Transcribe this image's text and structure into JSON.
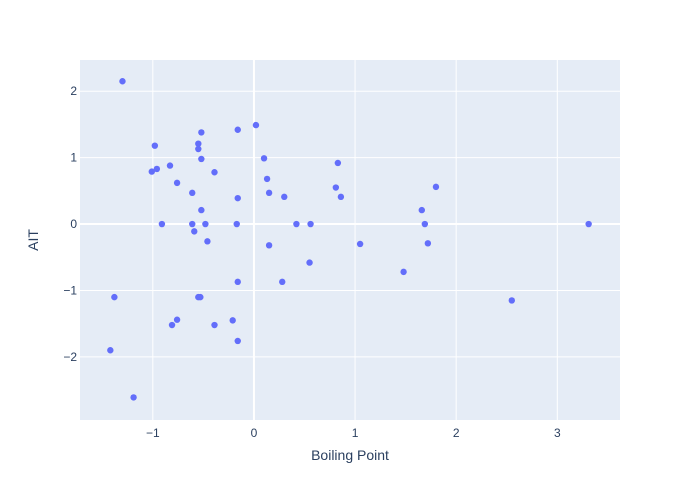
{
  "chart_data": {
    "type": "scatter",
    "title": "",
    "xlabel": "Boiling Point",
    "ylabel": "AIT",
    "xlim": [
      -1.72,
      3.62
    ],
    "ylim": [
      -2.95,
      2.47
    ],
    "xticks": [
      -1,
      0,
      1,
      2,
      3
    ],
    "xtick_labels": [
      "−1",
      "0",
      "1",
      "2",
      "3"
    ],
    "yticks": [
      -2,
      -1,
      0,
      1,
      2
    ],
    "ytick_labels": [
      "−2",
      "−1",
      "0",
      "1",
      "2"
    ],
    "grid": true,
    "legend": false,
    "plot_background": "#E5ECF6",
    "grid_color": "#FFFFFF",
    "marker_color": "#636EFA",
    "text_color": "#2A3F5F",
    "points": [
      {
        "x": -1.3,
        "y": 2.15
      },
      {
        "x": 0.02,
        "y": 1.49
      },
      {
        "x": -0.16,
        "y": 1.42
      },
      {
        "x": -0.52,
        "y": 1.38
      },
      {
        "x": -0.55,
        "y": 1.21
      },
      {
        "x": -0.98,
        "y": 1.18
      },
      {
        "x": -0.55,
        "y": 1.13
      },
      {
        "x": -0.52,
        "y": 0.98
      },
      {
        "x": 0.1,
        "y": 0.99
      },
      {
        "x": 0.83,
        "y": 0.92
      },
      {
        "x": -0.83,
        "y": 0.88
      },
      {
        "x": -0.96,
        "y": 0.83
      },
      {
        "x": -1.01,
        "y": 0.79
      },
      {
        "x": -0.39,
        "y": 0.78
      },
      {
        "x": 0.13,
        "y": 0.68
      },
      {
        "x": -0.76,
        "y": 0.62
      },
      {
        "x": 1.8,
        "y": 0.56
      },
      {
        "x": 0.81,
        "y": 0.55
      },
      {
        "x": -0.61,
        "y": 0.47
      },
      {
        "x": 0.15,
        "y": 0.47
      },
      {
        "x": 0.3,
        "y": 0.41
      },
      {
        "x": 0.86,
        "y": 0.41
      },
      {
        "x": -0.16,
        "y": 0.39
      },
      {
        "x": -0.52,
        "y": 0.21
      },
      {
        "x": 1.66,
        "y": 0.21
      },
      {
        "x": -0.91,
        "y": 0.0
      },
      {
        "x": -0.61,
        "y": 0.0
      },
      {
        "x": -0.48,
        "y": 0.0
      },
      {
        "x": -0.17,
        "y": 0.0
      },
      {
        "x": 0.42,
        "y": 0.0
      },
      {
        "x": 0.56,
        "y": 0.0
      },
      {
        "x": 1.69,
        "y": 0.0
      },
      {
        "x": 3.31,
        "y": 0.0
      },
      {
        "x": -0.59,
        "y": -0.11
      },
      {
        "x": -0.46,
        "y": -0.26
      },
      {
        "x": 0.15,
        "y": -0.32
      },
      {
        "x": 1.05,
        "y": -0.3
      },
      {
        "x": 1.72,
        "y": -0.29
      },
      {
        "x": 0.55,
        "y": -0.58
      },
      {
        "x": 1.48,
        "y": -0.72
      },
      {
        "x": -0.16,
        "y": -0.87
      },
      {
        "x": 0.28,
        "y": -0.87
      },
      {
        "x": -1.38,
        "y": -1.1
      },
      {
        "x": -0.55,
        "y": -1.1
      },
      {
        "x": -0.53,
        "y": -1.1
      },
      {
        "x": 2.55,
        "y": -1.15
      },
      {
        "x": -0.76,
        "y": -1.44
      },
      {
        "x": -0.21,
        "y": -1.45
      },
      {
        "x": -0.81,
        "y": -1.52
      },
      {
        "x": -0.39,
        "y": -1.52
      },
      {
        "x": -0.16,
        "y": -1.76
      },
      {
        "x": -1.42,
        "y": -1.9
      },
      {
        "x": -1.19,
        "y": -2.61
      }
    ]
  }
}
